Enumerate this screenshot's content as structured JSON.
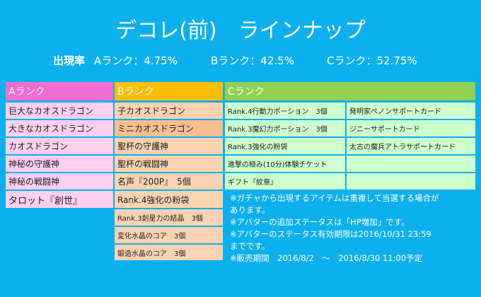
{
  "header": {
    "title": "デコレ(前)　ラインナップ",
    "rates": {
      "label": "出現率",
      "items": [
        "Aランク：4.75%",
        "Bランク：42.5%",
        "Cランク：52.75%"
      ]
    }
  },
  "table": {
    "columns": [
      "Aランク",
      "Bランク",
      "Cランク"
    ],
    "a_items": [
      "巨大なカオスドラゴン",
      "大きなカオスドラゴン",
      "カオスドラゴン",
      "神秘の守護神",
      "神秘の戦闘神",
      "タロット『創世』"
    ],
    "b_items": [
      "子カオスドラゴン",
      "ミニカオスドラゴン",
      "聖杯の守護神",
      "聖杯の戦闘神",
      "名声『200P』　5個",
      "Rank.4強化の粉袋",
      "Rank.3創星力の結晶　3個",
      "変化水晶のコア　3個",
      "鍛造水晶のコア　3個"
    ],
    "c_left": [
      "Rank.4行動力ポーション　3個",
      "Rank.3魔幻力ポーション　3個",
      "Rank.3強化の粉袋",
      "進撃の極み(10分)体験チケット",
      "ギフト『紋章』"
    ],
    "c_right": [
      "発明家ペノンサポートカード",
      "ジニーサポートカード",
      "太古の魔兵アトラサポートカード"
    ]
  },
  "notes": [
    "※ガチャから出現するアイテムは重複して当選する場合が",
    "あります。",
    "※アバターの追加ステータスは「HP増加」です。",
    "※アバターのステータス有効期限は2016/10/31 23:59",
    "までです。",
    "※販売期間　2016/8/2　～　2016/8/30 11:00予定"
  ]
}
